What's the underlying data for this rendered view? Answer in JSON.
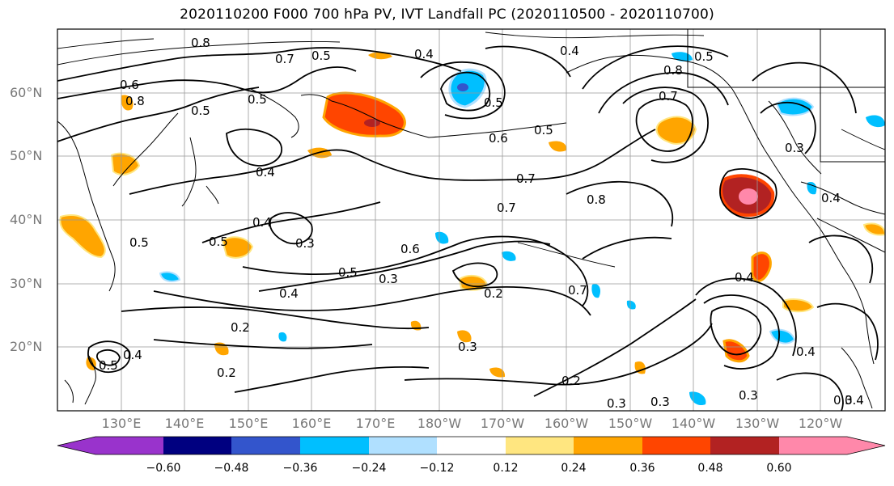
{
  "title": "2020110200 F000 700 hPa PV, IVT Landfall PC (2020110500 - 2020110700)",
  "map": {
    "lat_labels": [
      "60°N",
      "50°N",
      "40°N",
      "30°N",
      "20°N"
    ],
    "lon_labels": [
      "130°E",
      "140°E",
      "150°E",
      "160°E",
      "170°E",
      "180°W",
      "170°W",
      "160°W",
      "150°W",
      "140°W",
      "130°W",
      "120°W"
    ],
    "contour_labels": [
      "0.8",
      "0.7",
      "0.5",
      "0.4",
      "0.4",
      "0.6",
      "0.5",
      "0.8",
      "0.5",
      "0.8",
      "0.5",
      "0.5",
      "0.4",
      "0.6",
      "0.5",
      "0.3",
      "0.4",
      "0.7",
      "0.7",
      "0.8",
      "0.4",
      "0.5",
      "0.3",
      "0.6",
      "0.5",
      "0.3",
      "0.4",
      "0.2",
      "0.7",
      "0.2",
      "0.2",
      "0.5",
      "0.4",
      "0.3",
      "0.2",
      "0.3",
      "0.3",
      "0.4",
      "0.4",
      "0.3",
      "0.3",
      "0.7",
      "0.5",
      "0.4"
    ]
  },
  "colorbar": {
    "colors": [
      "#9933cc",
      "#000080",
      "#3355cc",
      "#00bfff",
      "#b0e0ff",
      "#ffffff",
      "#ffe680",
      "#ffa500",
      "#ff4500",
      "#b22222",
      "#ff88aa"
    ],
    "ticks": [
      "−0.60",
      "−0.48",
      "−0.36",
      "−0.24",
      "−0.12",
      "0.12",
      "0.24",
      "0.36",
      "0.48",
      "0.60"
    ]
  }
}
